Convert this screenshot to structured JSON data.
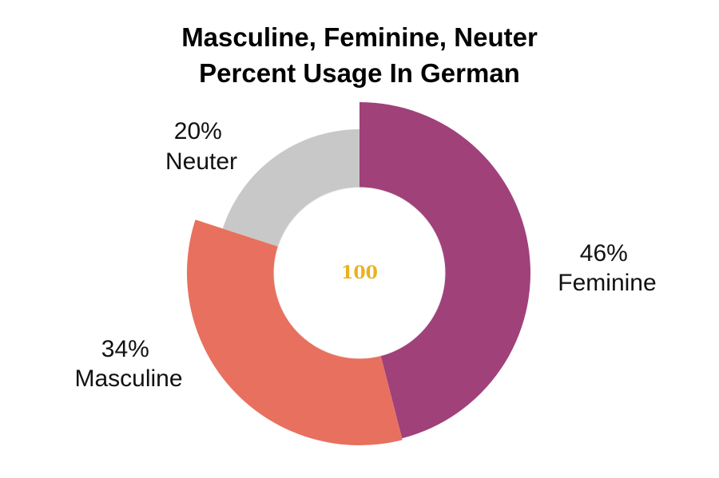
{
  "chart_data": {
    "type": "pie",
    "title_lines": [
      "Masculine, Feminine, Neuter",
      "Percent Usage In German"
    ],
    "center_text": "100",
    "slices": [
      {
        "label": "Feminine",
        "value": 46,
        "value_label": "46%",
        "color": "#A0417A"
      },
      {
        "label": "Masculine",
        "value": 34,
        "value_label": "34%",
        "color": "#E8705E"
      },
      {
        "label": "Neuter",
        "value": 20,
        "value_label": "20%",
        "color": "#C8C8C8"
      }
    ],
    "center_text_color": "#E8B21D"
  }
}
